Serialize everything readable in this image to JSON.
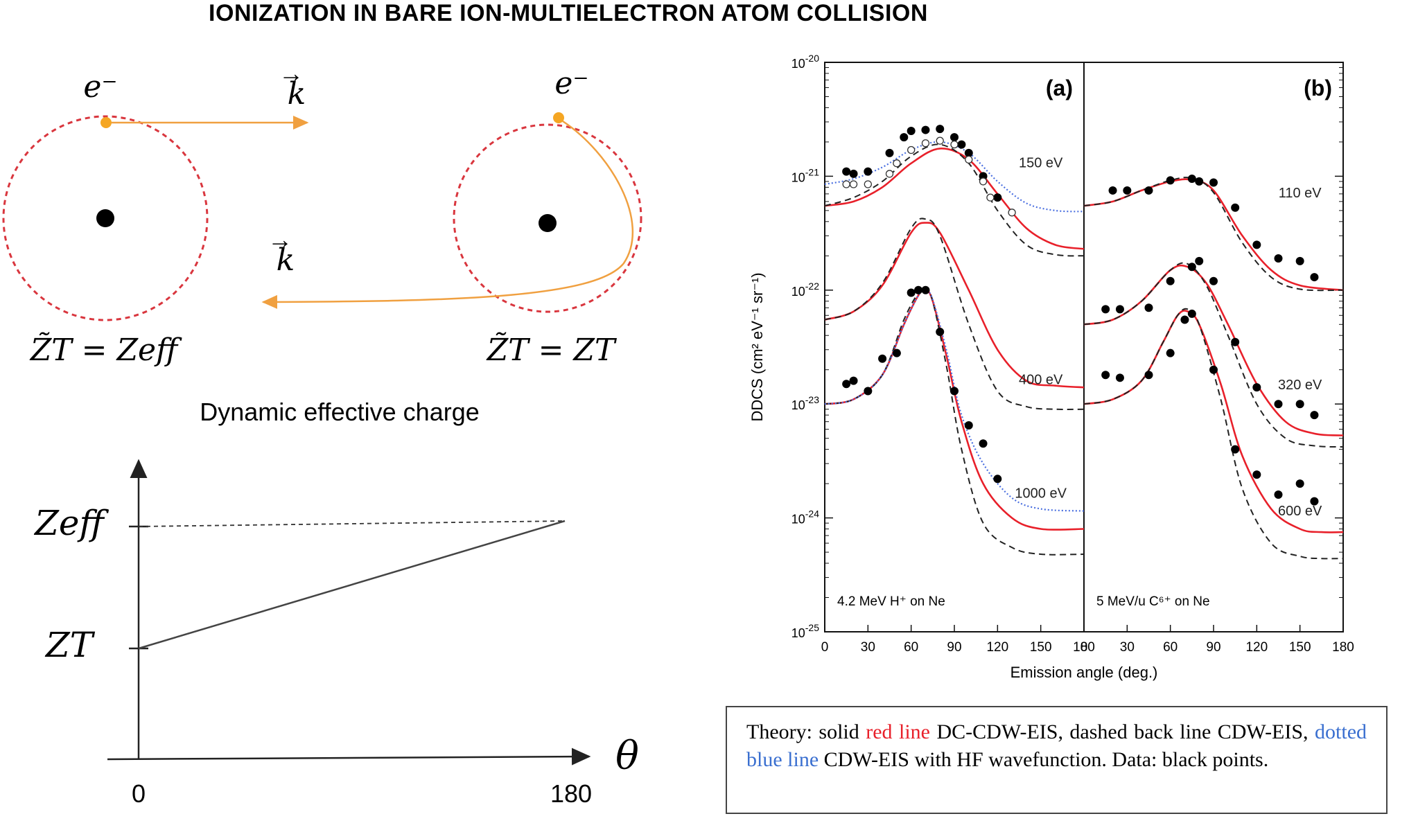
{
  "title": "IONIZATION IN BARE ION-MULTIELECTRON ATOM COLLISION",
  "diagram": {
    "electron_label": "e⁻",
    "momentum_label": "k",
    "left_charge_label": "Z̃T = Zeff",
    "right_charge_label": "Z̃T = ZT",
    "caption": "Dynamic effective charge",
    "plot": {
      "y_label_top": "Zeff",
      "y_label_bottom": "ZT",
      "x_label": "θ",
      "x_tick_start": "0",
      "x_tick_end": "180"
    }
  },
  "chart_data": {
    "type": "line",
    "y_scale": "log",
    "ylabel": "DDCS (cm² eV⁻¹ sr⁻¹)",
    "xlabel": "Emission angle (deg.)",
    "ylim": [
      1e-25,
      1e-20
    ],
    "y_tick_labels": [
      "10-20",
      "10-21",
      "10-22",
      "10-23",
      "10-24",
      "10-25"
    ],
    "x_tick_labels": [
      "0",
      "30",
      "60",
      "90",
      "120",
      "150",
      "180"
    ],
    "panels": [
      {
        "panel_label": "(a)",
        "system": "4.2 MeV H⁺ on Ne",
        "xlim": [
          0,
          180
        ],
        "energy_labels": [
          {
            "text": "150 eV",
            "x": 150,
            "y": 1.2e-21
          },
          {
            "text": "400 eV",
            "x": 150,
            "y": 1.5e-23
          },
          {
            "text": "1000 eV",
            "x": 150,
            "y": 1.5e-24
          }
        ],
        "groups": [
          {
            "energy": "150 eV",
            "series": [
              {
                "style": "solid-red",
                "x": [
                  0,
                  20,
                  40,
                  60,
                  80,
                  100,
                  120,
                  140,
                  160,
                  180
                ],
                "y": [
                  5.5e-22,
                  6e-22,
                  8e-22,
                  1.3e-21,
                  1.75e-21,
                  1.4e-21,
                  7e-22,
                  3.5e-22,
                  2.5e-22,
                  2.3e-22
                ]
              },
              {
                "style": "dashed-black",
                "x": [
                  0,
                  20,
                  40,
                  60,
                  80,
                  100,
                  120,
                  140,
                  160,
                  180
                ],
                "y": [
                  5.5e-22,
                  6.5e-22,
                  9e-22,
                  1.5e-21,
                  1.9e-21,
                  1.3e-21,
                  5e-22,
                  2.5e-22,
                  2.05e-22,
                  2e-22
                ]
              },
              {
                "style": "dotted-blue",
                "x": [
                  0,
                  20,
                  40,
                  60,
                  80,
                  100,
                  120,
                  140,
                  160,
                  180
                ],
                "y": [
                  8.5e-22,
                  9.5e-22,
                  1.2e-21,
                  1.7e-21,
                  2e-21,
                  1.6e-21,
                  9e-22,
                  5.8e-22,
                  5e-22,
                  4.9e-22
                ]
              },
              {
                "style": "points-filled",
                "x": [
                  15,
                  20,
                  30,
                  45,
                  55,
                  60,
                  70,
                  80,
                  90,
                  95,
                  100,
                  110,
                  120
                ],
                "y": [
                  1.1e-21,
                  1.05e-21,
                  1.1e-21,
                  1.6e-21,
                  2.2e-21,
                  2.5e-21,
                  2.55e-21,
                  2.6e-21,
                  2.2e-21,
                  1.9e-21,
                  1.6e-21,
                  1e-21,
                  6.5e-22
                ]
              },
              {
                "style": "points-open",
                "x": [
                  15,
                  20,
                  30,
                  45,
                  50,
                  60,
                  70,
                  80,
                  90,
                  100,
                  110,
                  115,
                  130
                ],
                "y": [
                  8.5e-22,
                  8.5e-22,
                  8.5e-22,
                  1.05e-21,
                  1.3e-21,
                  1.7e-21,
                  1.95e-21,
                  2.05e-21,
                  1.9e-21,
                  1.4e-21,
                  9e-22,
                  6.5e-22,
                  4.8e-22
                ]
              }
            ]
          },
          {
            "energy": "400 eV",
            "series": [
              {
                "style": "solid-red",
                "x": [
                  0,
                  20,
                  40,
                  60,
                  70,
                  80,
                  100,
                  120,
                  140,
                  160,
                  180
                ],
                "y": [
                  5.5e-23,
                  6.5e-23,
                  1.1e-22,
                  3.2e-22,
                  3.9e-22,
                  3.2e-22,
                  1e-22,
                  3e-23,
                  1.6e-23,
                  1.45e-23,
                  1.4e-23
                ]
              },
              {
                "style": "dashed-black",
                "x": [
                  0,
                  20,
                  40,
                  60,
                  70,
                  80,
                  100,
                  120,
                  140,
                  160,
                  180
                ],
                "y": [
                  5.5e-23,
                  6.5e-23,
                  1.15e-22,
                  3.5e-22,
                  4.2e-22,
                  3e-22,
                  5e-23,
                  1.3e-23,
                  9.5e-24,
                  9e-24,
                  9e-24
                ]
              }
            ]
          },
          {
            "energy": "1000 eV",
            "series": [
              {
                "style": "solid-red",
                "x": [
                  0,
                  20,
                  40,
                  55,
                  65,
                  70,
                  75,
                  85,
                  95,
                  110,
                  130,
                  150,
                  180
                ],
                "y": [
                  1e-23,
                  1.1e-23,
                  1.8e-23,
                  5e-23,
                  9e-23,
                  1e-22,
                  8e-23,
                  2.5e-23,
                  7e-24,
                  2e-24,
                  1e-24,
                  8e-25,
                  8e-25
                ]
              },
              {
                "style": "dashed-black",
                "x": [
                  0,
                  20,
                  40,
                  55,
                  65,
                  70,
                  75,
                  85,
                  95,
                  110,
                  130,
                  150,
                  180
                ],
                "y": [
                  1e-23,
                  1.1e-23,
                  1.8e-23,
                  5.5e-23,
                  9.5e-23,
                  1.05e-22,
                  8e-23,
                  2e-23,
                  4e-24,
                  9e-25,
                  5.5e-25,
                  4.8e-25,
                  4.8e-25
                ]
              },
              {
                "style": "dotted-blue",
                "x": [
                  0,
                  20,
                  40,
                  55,
                  65,
                  70,
                  75,
                  85,
                  95,
                  110,
                  130,
                  150,
                  180
                ],
                "y": [
                  1e-23,
                  1.1e-23,
                  1.8e-23,
                  5e-23,
                  9e-23,
                  1e-22,
                  8.2e-23,
                  2.8e-23,
                  8e-24,
                  3e-24,
                  1.5e-24,
                  1.2e-24,
                  1.15e-24
                ]
              },
              {
                "style": "points-filled",
                "x": [
                  15,
                  20,
                  30,
                  40,
                  50,
                  60,
                  65,
                  70,
                  80,
                  90,
                  100,
                  110,
                  120
                ],
                "y": [
                  1.5e-23,
                  1.6e-23,
                  1.3e-23,
                  2.5e-23,
                  2.8e-23,
                  9.5e-23,
                  1e-22,
                  1e-22,
                  4.3e-23,
                  1.3e-23,
                  6.5e-24,
                  4.5e-24,
                  2.2e-24
                ]
              }
            ]
          }
        ]
      },
      {
        "panel_label": "(b)",
        "system": "5 MeV/u C⁶⁺ on Ne",
        "xlim": [
          0,
          180
        ],
        "energy_labels": [
          {
            "text": "110 eV",
            "x": 150,
            "y": 6.5e-22
          },
          {
            "text": "320 eV",
            "x": 150,
            "y": 1.35e-23
          },
          {
            "text": "600 eV",
            "x": 150,
            "y": 1.05e-24
          }
        ],
        "groups": [
          {
            "energy": "110 eV",
            "series": [
              {
                "style": "solid-red",
                "x": [
                  0,
                  20,
                  40,
                  60,
                  75,
                  90,
                  110,
                  130,
                  150,
                  180
                ],
                "y": [
                  5.5e-22,
                  6e-22,
                  7.5e-22,
                  9e-22,
                  9.3e-22,
                  7.5e-22,
                  3e-22,
                  1.5e-22,
                  1.1e-22,
                  1e-22
                ]
              },
              {
                "style": "dashed-black",
                "x": [
                  0,
                  20,
                  40,
                  60,
                  75,
                  90,
                  110,
                  130,
                  150,
                  180
                ],
                "y": [
                  5.5e-22,
                  6e-22,
                  7.5e-22,
                  9.2e-22,
                  9.6e-22,
                  7.2e-22,
                  2.6e-22,
                  1.3e-22,
                  1.02e-22,
                  1e-22
                ]
              },
              {
                "style": "points-filled",
                "x": [
                  20,
                  30,
                  45,
                  60,
                  75,
                  80,
                  90,
                  105,
                  120,
                  135,
                  150,
                  160
                ],
                "y": [
                  7.5e-22,
                  7.5e-22,
                  7.5e-22,
                  9.2e-22,
                  9.5e-22,
                  9e-22,
                  8.8e-22,
                  5.3e-22,
                  2.5e-22,
                  1.9e-22,
                  1.8e-22,
                  1.3e-22
                ]
              }
            ]
          },
          {
            "energy": "320 eV",
            "series": [
              {
                "style": "solid-red",
                "x": [
                  0,
                  20,
                  40,
                  60,
                  72,
                  85,
                  100,
                  120,
                  140,
                  160,
                  180
                ],
                "y": [
                  5e-23,
                  5.5e-23,
                  8e-23,
                  1.5e-22,
                  1.6e-22,
                  1.15e-22,
                  5e-23,
                  1.5e-23,
                  7e-24,
                  5.5e-24,
                  5.3e-24
                ]
              },
              {
                "style": "dashed-black",
                "x": [
                  0,
                  20,
                  40,
                  60,
                  72,
                  85,
                  100,
                  120,
                  140,
                  160,
                  180
                ],
                "y": [
                  5e-23,
                  5.5e-23,
                  8e-23,
                  1.5e-22,
                  1.7e-22,
                  1.1e-22,
                  4e-23,
                  1e-23,
                  5e-24,
                  4.3e-24,
                  4.2e-24
                ]
              },
              {
                "style": "points-filled",
                "x": [
                  15,
                  25,
                  45,
                  60,
                  75,
                  80,
                  90,
                  105,
                  120,
                  135,
                  150,
                  160
                ],
                "y": [
                  6.8e-23,
                  6.8e-23,
                  7e-23,
                  1.2e-22,
                  1.6e-22,
                  1.8e-22,
                  1.2e-22,
                  3.5e-23,
                  1.4e-23,
                  1e-23,
                  1e-23,
                  8e-24
                ]
              }
            ]
          },
          {
            "energy": "600 eV",
            "series": [
              {
                "style": "solid-red",
                "x": [
                  0,
                  20,
                  40,
                  55,
                  65,
                  72,
                  80,
                  95,
                  110,
                  130,
                  150,
                  165,
                  180
                ],
                "y": [
                  1e-23,
                  1.1e-23,
                  1.6e-23,
                  3.5e-23,
                  6e-23,
                  6.5e-23,
                  5e-23,
                  1.5e-23,
                  3.5e-24,
                  1.2e-24,
                  8e-25,
                  7.5e-25,
                  7.5e-25
                ]
              },
              {
                "style": "dashed-black",
                "x": [
                  0,
                  20,
                  40,
                  55,
                  65,
                  72,
                  80,
                  95,
                  110,
                  130,
                  150,
                  165,
                  180
                ],
                "y": [
                  1e-23,
                  1.1e-23,
                  1.6e-23,
                  3.5e-23,
                  6e-23,
                  6.8e-23,
                  5e-23,
                  1.1e-23,
                  1.8e-24,
                  6e-25,
                  4.6e-25,
                  4.4e-25,
                  4.4e-25
                ]
              },
              {
                "style": "points-filled",
                "x": [
                  15,
                  25,
                  45,
                  60,
                  70,
                  75,
                  90,
                  105,
                  120,
                  135,
                  150,
                  160
                ],
                "y": [
                  1.8e-23,
                  1.7e-23,
                  1.8e-23,
                  2.8e-23,
                  5.5e-23,
                  6.2e-23,
                  2e-23,
                  4e-24,
                  2.4e-24,
                  1.6e-24,
                  2e-24,
                  1.4e-24
                ]
              }
            ]
          }
        ]
      }
    ]
  },
  "legend": {
    "prefix": "Theory: solid",
    "red_label": "red line",
    "after_red": "DC-CDW-EIS, dashed back line CDW-EIS,",
    "blue_label": "dotted blue line",
    "after_blue": "CDW-EIS with HF wavefunction. Data: black points.",
    "red_color": "#e8202a",
    "blue_color": "#3a6fd0"
  },
  "colors": {
    "orbit": "#d9363e",
    "electron": "#f5a623",
    "trajectory": "#f0a040"
  }
}
